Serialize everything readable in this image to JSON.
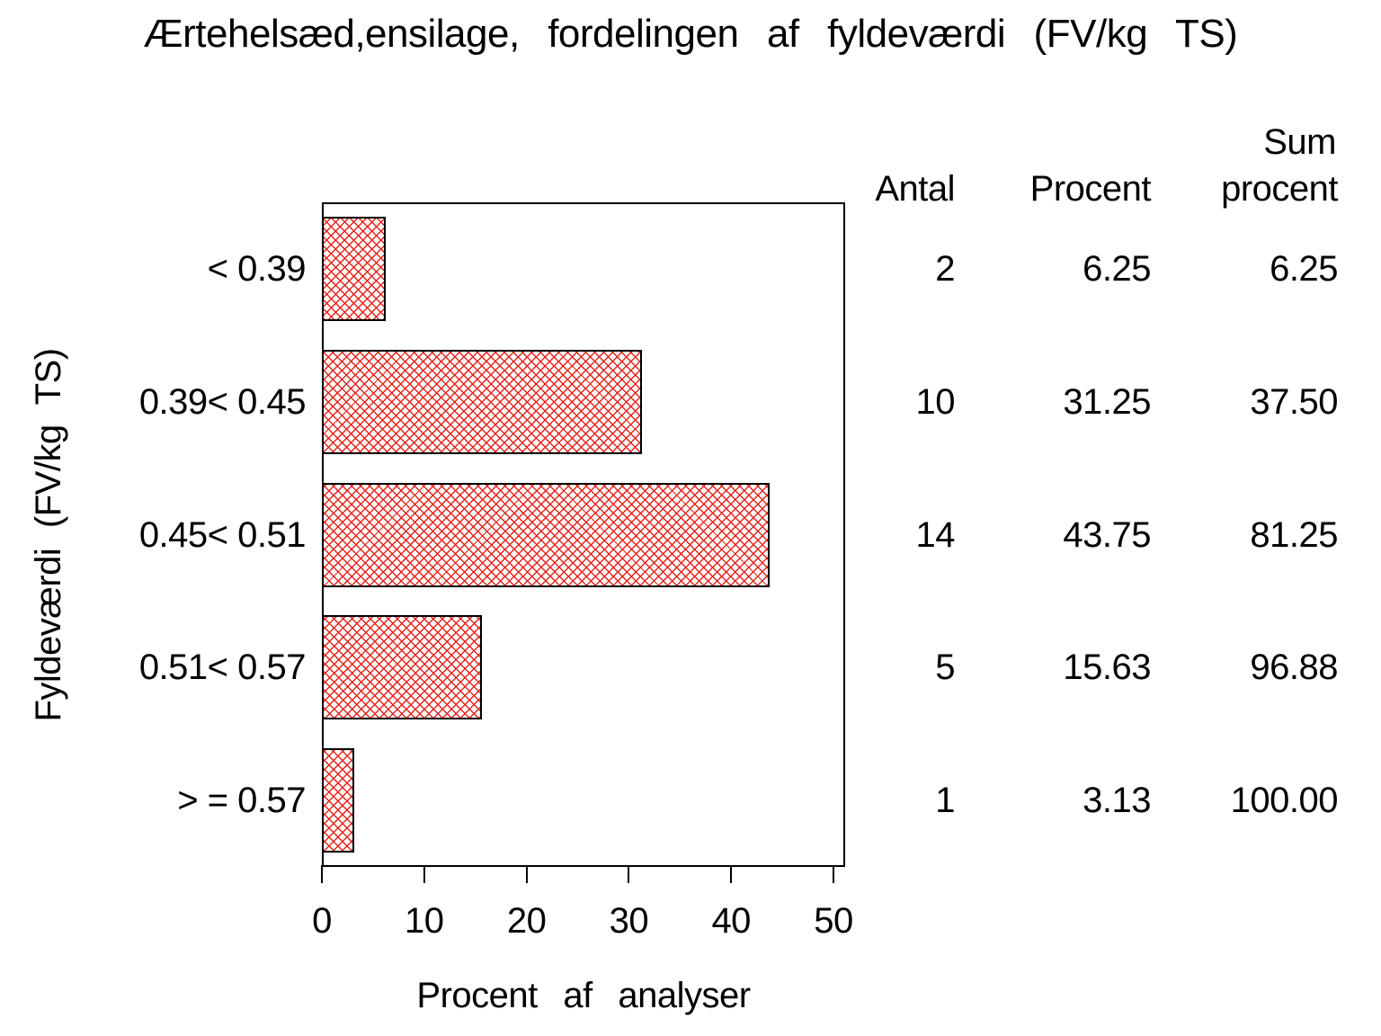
{
  "chart_data": {
    "type": "bar",
    "orientation": "horizontal",
    "title": "Ærtehelsæd,ensilage,  fordelingen  af  fyldeværdi  (FV/kg  TS)",
    "categories": [
      "< 0.39",
      "0.39< 0.45",
      "0.45< 0.51",
      "0.51< 0.57",
      "> = 0.57"
    ],
    "values": [
      6.25,
      31.25,
      43.75,
      15.63,
      3.13
    ],
    "xlabel": "Procent  af  analyser",
    "ylabel": "Fyldeværdi  (FV/kg  TS)",
    "xlim": [
      0,
      50
    ],
    "x_ticks": [
      0,
      10,
      20,
      30,
      40,
      50
    ],
    "grid": false,
    "legend": "none",
    "bar_pattern": "crosshatch",
    "bar_color": "#e3231a",
    "bar_border_color": "#000000"
  },
  "table": {
    "headers": {
      "antal": "Antal",
      "procent": "Procent",
      "sum_line1": "Sum",
      "sum_line2": "procent"
    },
    "rows": [
      {
        "antal": "2",
        "procent": "6.25",
        "sum_procent": "6.25"
      },
      {
        "antal": "10",
        "procent": "31.25",
        "sum_procent": "37.50"
      },
      {
        "antal": "14",
        "procent": "43.75",
        "sum_procent": "81.25"
      },
      {
        "antal": "5",
        "procent": "15.63",
        "sum_procent": "96.88"
      },
      {
        "antal": "1",
        "procent": "3.13",
        "sum_procent": "100.00"
      }
    ]
  }
}
